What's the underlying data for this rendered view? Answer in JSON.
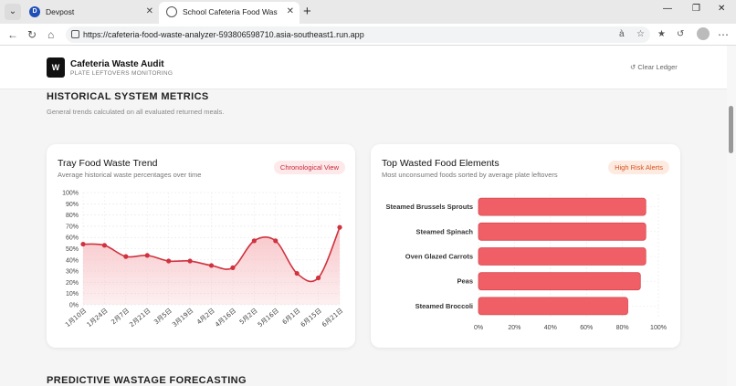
{
  "browser": {
    "tabs": [
      {
        "title": "Devpost",
        "icon": "devpost-icon"
      },
      {
        "title": "School Cafeteria Food Waste Anal",
        "icon": "globe-icon"
      }
    ],
    "url": "https://cafeteria-food-waste-analyzer-593806598710.asia-southeast1.run.app"
  },
  "app": {
    "logo": "W",
    "name": "Cafeteria Waste Audit",
    "subtitle": "PLATE LEFTOVERS MONITORING",
    "clear_label": "Clear Ledger"
  },
  "section": {
    "title": "HISTORICAL SYSTEM METRICS",
    "subtitle": "General trends calculated on all evaluated returned meals.",
    "next_title": "PREDICTIVE WASTAGE FORECASTING"
  },
  "cards": {
    "trend": {
      "title": "Tray Food Waste Trend",
      "subtitle": "Average historical waste percentages over time",
      "badge": "Chronological View"
    },
    "top": {
      "title": "Top Wasted Food Elements",
      "subtitle": "Most unconsumed foods sorted by average plate leftovers",
      "badge": "High Risk Alerts"
    }
  },
  "colors": {
    "line": "#d0323f",
    "area": "#f7c2c6",
    "bar": "#f05f66",
    "bar_edge": "#d54850"
  },
  "chart_data": [
    {
      "type": "area",
      "x": [
        "1月10日",
        "1月24日",
        "2月7日",
        "2月21日",
        "3月5日",
        "3月19日",
        "4月2日",
        "4月16日",
        "5月2日",
        "5月16日",
        "6月1日",
        "6月15日",
        "6月21日"
      ],
      "values": [
        54,
        53,
        43,
        44,
        39,
        39,
        35,
        33,
        57,
        57,
        28,
        24,
        69
      ],
      "ylim": [
        0,
        100
      ],
      "yticks": [
        "0%",
        "10%",
        "20%",
        "30%",
        "40%",
        "50%",
        "60%",
        "70%",
        "80%",
        "90%",
        "100%"
      ],
      "grid": true
    },
    {
      "type": "bar",
      "orientation": "horizontal",
      "categories": [
        "Steamed Brussels Sprouts",
        "Steamed Spinach",
        "Oven Glazed Carrots",
        "Peas",
        "Steamed Broccoli"
      ],
      "values": [
        93,
        93,
        93,
        90,
        83
      ],
      "xlim": [
        0,
        100
      ],
      "xticks": [
        "0%",
        "20%",
        "40%",
        "60%",
        "80%",
        "100%"
      ],
      "grid": true
    }
  ]
}
